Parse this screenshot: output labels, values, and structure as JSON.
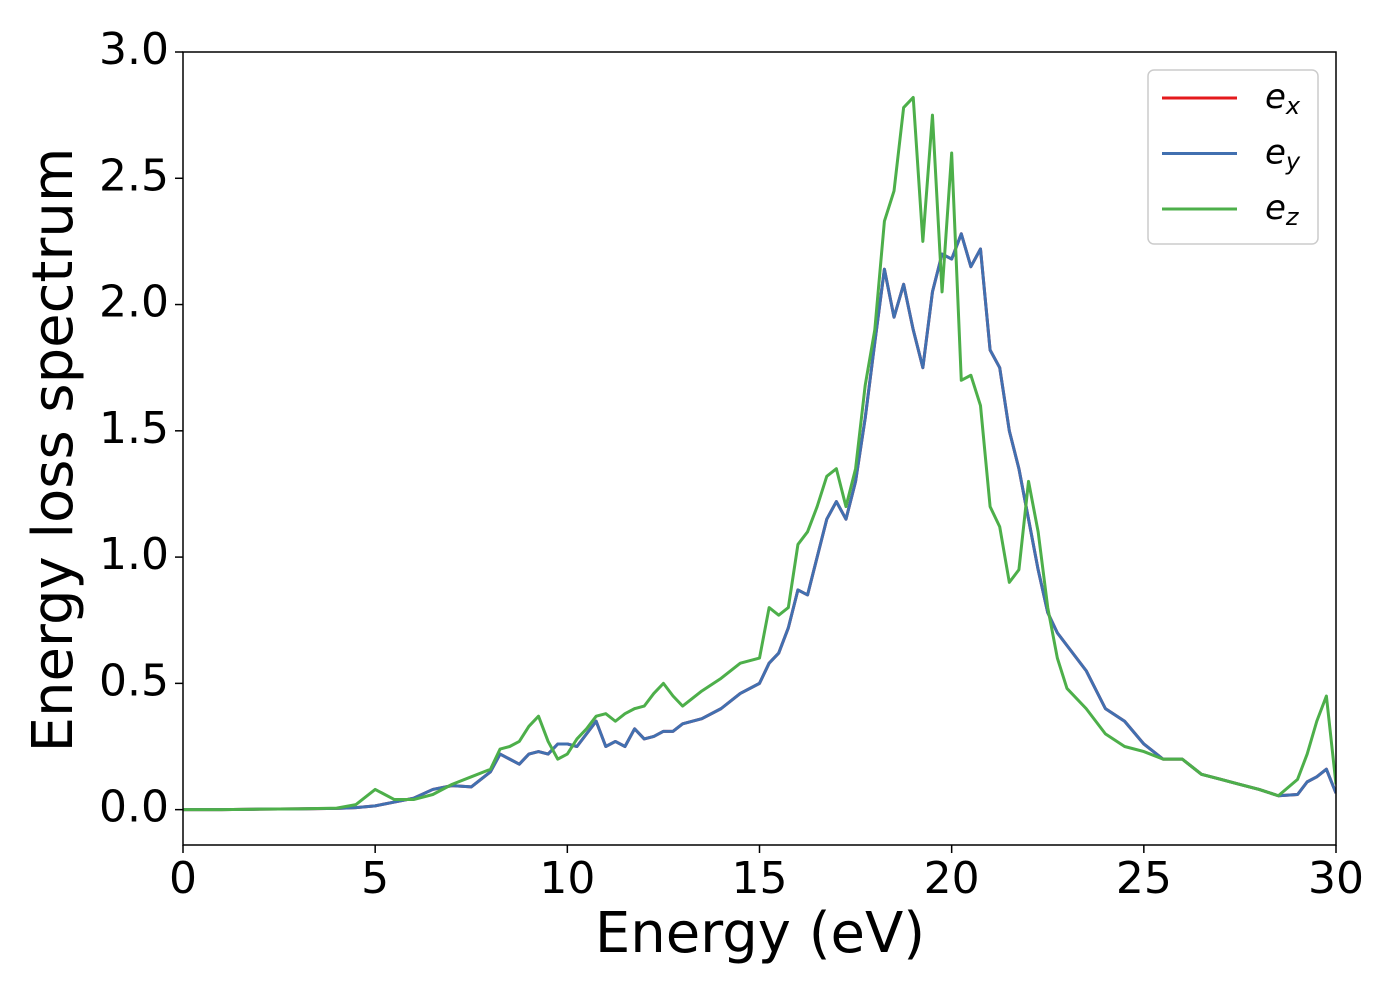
{
  "chart_data": {
    "type": "line",
    "xlabel": "Energy (eV)",
    "ylabel": "Energy loss spectrum",
    "x": [
      0,
      1,
      2,
      3,
      4,
      4.5,
      5,
      5.5,
      6,
      6.5,
      7,
      7.5,
      8,
      8.25,
      8.5,
      8.75,
      9,
      9.25,
      9.5,
      9.75,
      10,
      10.25,
      10.5,
      10.75,
      11,
      11.25,
      11.5,
      11.75,
      12,
      12.25,
      12.5,
      12.75,
      13,
      13.5,
      14,
      14.5,
      15,
      15.25,
      15.5,
      15.75,
      16,
      16.25,
      16.5,
      16.75,
      17,
      17.25,
      17.5,
      17.75,
      18,
      18.25,
      18.5,
      18.75,
      19,
      19.25,
      19.5,
      19.75,
      20,
      20.25,
      20.5,
      20.75,
      21,
      21.25,
      21.5,
      21.75,
      22,
      22.25,
      22.5,
      22.75,
      23,
      23.5,
      24,
      24.5,
      25,
      25.5,
      26,
      26.5,
      27,
      27.5,
      28,
      28.5,
      29,
      29.25,
      29.5,
      29.75,
      30
    ],
    "series": [
      {
        "name": "ex",
        "color": "#e41a1c",
        "values": [
          0,
          0,
          0.002,
          0.003,
          0.005,
          0.008,
          0.015,
          0.03,
          0.045,
          0.08,
          0.095,
          0.09,
          0.15,
          0.22,
          0.2,
          0.18,
          0.22,
          0.23,
          0.22,
          0.26,
          0.26,
          0.25,
          0.3,
          0.35,
          0.25,
          0.27,
          0.25,
          0.32,
          0.28,
          0.29,
          0.31,
          0.31,
          0.34,
          0.36,
          0.4,
          0.46,
          0.5,
          0.58,
          0.62,
          0.72,
          0.87,
          0.85,
          1.0,
          1.15,
          1.22,
          1.15,
          1.3,
          1.55,
          1.85,
          2.14,
          1.95,
          2.08,
          1.9,
          1.75,
          2.05,
          2.2,
          2.18,
          2.28,
          2.15,
          2.22,
          1.82,
          1.75,
          1.5,
          1.35,
          1.15,
          0.95,
          0.78,
          0.7,
          0.65,
          0.55,
          0.4,
          0.35,
          0.26,
          0.2,
          0.2,
          0.14,
          0.12,
          0.1,
          0.08,
          0.055,
          0.06,
          0.11,
          0.13,
          0.16,
          0.065
        ]
      },
      {
        "name": "ey",
        "color": "#4170b0",
        "values": [
          0,
          0,
          0.002,
          0.003,
          0.005,
          0.008,
          0.015,
          0.03,
          0.045,
          0.08,
          0.095,
          0.09,
          0.15,
          0.22,
          0.2,
          0.18,
          0.22,
          0.23,
          0.22,
          0.26,
          0.26,
          0.25,
          0.3,
          0.35,
          0.25,
          0.27,
          0.25,
          0.32,
          0.28,
          0.29,
          0.31,
          0.31,
          0.34,
          0.36,
          0.4,
          0.46,
          0.5,
          0.58,
          0.62,
          0.72,
          0.87,
          0.85,
          1.0,
          1.15,
          1.22,
          1.15,
          1.3,
          1.55,
          1.85,
          2.14,
          1.95,
          2.08,
          1.9,
          1.75,
          2.05,
          2.2,
          2.18,
          2.28,
          2.15,
          2.22,
          1.82,
          1.75,
          1.5,
          1.35,
          1.15,
          0.95,
          0.78,
          0.7,
          0.65,
          0.55,
          0.4,
          0.35,
          0.26,
          0.2,
          0.2,
          0.14,
          0.12,
          0.1,
          0.08,
          0.055,
          0.06,
          0.11,
          0.13,
          0.16,
          0.065
        ]
      },
      {
        "name": "ez",
        "color": "#4daf4a",
        "values": [
          0,
          0,
          0.002,
          0.003,
          0.006,
          0.02,
          0.08,
          0.04,
          0.04,
          0.06,
          0.1,
          0.13,
          0.16,
          0.24,
          0.25,
          0.27,
          0.33,
          0.37,
          0.27,
          0.2,
          0.22,
          0.28,
          0.32,
          0.37,
          0.38,
          0.35,
          0.38,
          0.4,
          0.41,
          0.46,
          0.5,
          0.45,
          0.41,
          0.47,
          0.52,
          0.58,
          0.6,
          0.8,
          0.77,
          0.8,
          1.05,
          1.1,
          1.2,
          1.32,
          1.35,
          1.2,
          1.35,
          1.68,
          1.9,
          2.33,
          2.45,
          2.78,
          2.82,
          2.25,
          2.75,
          2.05,
          2.6,
          1.7,
          1.72,
          1.6,
          1.2,
          1.12,
          0.9,
          0.95,
          1.3,
          1.1,
          0.8,
          0.6,
          0.48,
          0.4,
          0.3,
          0.25,
          0.23,
          0.2,
          0.2,
          0.14,
          0.12,
          0.1,
          0.08,
          0.055,
          0.12,
          0.22,
          0.35,
          0.45,
          0.1
        ]
      }
    ],
    "xlim": [
      0,
      30
    ],
    "xticks": [
      0,
      5,
      10,
      15,
      20,
      25,
      30
    ],
    "ylim": [
      -0.14,
      3.0
    ],
    "yticks": [
      {
        "value": 0,
        "label": "0.0"
      },
      0.5,
      {
        "value": 1,
        "label": "1.0"
      },
      1.5,
      {
        "value": 2,
        "label": "2.0"
      },
      2.5,
      {
        "value": 3,
        "label": "3.0"
      }
    ],
    "legend": "upper right",
    "grid": false
  }
}
